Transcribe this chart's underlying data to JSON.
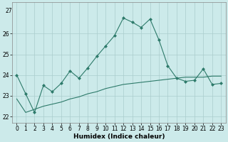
{
  "title": "",
  "xlabel": "Humidex (Indice chaleur)",
  "ylabel": "",
  "line1_x": [
    0,
    1,
    2,
    3,
    4,
    5,
    6,
    7,
    8,
    9,
    10,
    11,
    12,
    13,
    14,
    15,
    16,
    17,
    18,
    19,
    20,
    21,
    22,
    23
  ],
  "line1_y": [
    24.0,
    23.1,
    22.2,
    23.5,
    23.2,
    23.6,
    24.2,
    23.85,
    24.35,
    24.9,
    25.4,
    25.9,
    26.75,
    26.55,
    26.3,
    26.7,
    25.7,
    24.45,
    23.85,
    23.7,
    23.75,
    24.3,
    23.55,
    23.6
  ],
  "line2_x": [
    0,
    1,
    2,
    3,
    4,
    5,
    6,
    7,
    8,
    9,
    10,
    11,
    12,
    13,
    14,
    15,
    16,
    17,
    18,
    19,
    20,
    21,
    22,
    23
  ],
  "line2_y": [
    22.85,
    22.2,
    22.35,
    22.5,
    22.6,
    22.7,
    22.85,
    22.95,
    23.1,
    23.2,
    23.35,
    23.45,
    23.55,
    23.6,
    23.65,
    23.7,
    23.75,
    23.8,
    23.85,
    23.9,
    23.9,
    23.9,
    23.95,
    23.95
  ],
  "line_color": "#2d7a6a",
  "bg_color": "#cceaea",
  "grid_color": "#aacccc",
  "ylim": [
    21.7,
    27.5
  ],
  "yticks": [
    22,
    23,
    24,
    25,
    26
  ],
  "ytop_label": "27",
  "xticks": [
    0,
    1,
    2,
    3,
    4,
    5,
    6,
    7,
    8,
    9,
    10,
    11,
    12,
    13,
    14,
    15,
    16,
    17,
    18,
    19,
    20,
    21,
    22,
    23
  ],
  "marker": "D",
  "markersize": 2.0,
  "linewidth": 0.8,
  "tick_fontsize": 5.5,
  "xlabel_fontsize": 6.5
}
